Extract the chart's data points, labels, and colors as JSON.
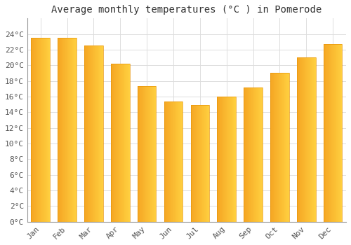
{
  "title": "Average monthly temperatures (°C ) in Pomerode",
  "months": [
    "Jan",
    "Feb",
    "Mar",
    "Apr",
    "May",
    "Jun",
    "Jul",
    "Aug",
    "Sep",
    "Oct",
    "Nov",
    "Dec"
  ],
  "values": [
    23.5,
    23.5,
    22.5,
    20.2,
    17.3,
    15.4,
    14.9,
    16.0,
    17.2,
    19.0,
    21.0,
    22.7
  ],
  "bar_color_left": "#F5A623",
  "bar_color_right": "#FFD040",
  "bar_edge_color": "#E8960A",
  "background_color": "#FFFFFF",
  "plot_bg_color": "#FFFFFF",
  "grid_color": "#DDDDDD",
  "title_fontsize": 10,
  "tick_fontsize": 8,
  "ylim": [
    0,
    26
  ],
  "yticks": [
    0,
    2,
    4,
    6,
    8,
    10,
    12,
    14,
    16,
    18,
    20,
    22,
    24
  ]
}
